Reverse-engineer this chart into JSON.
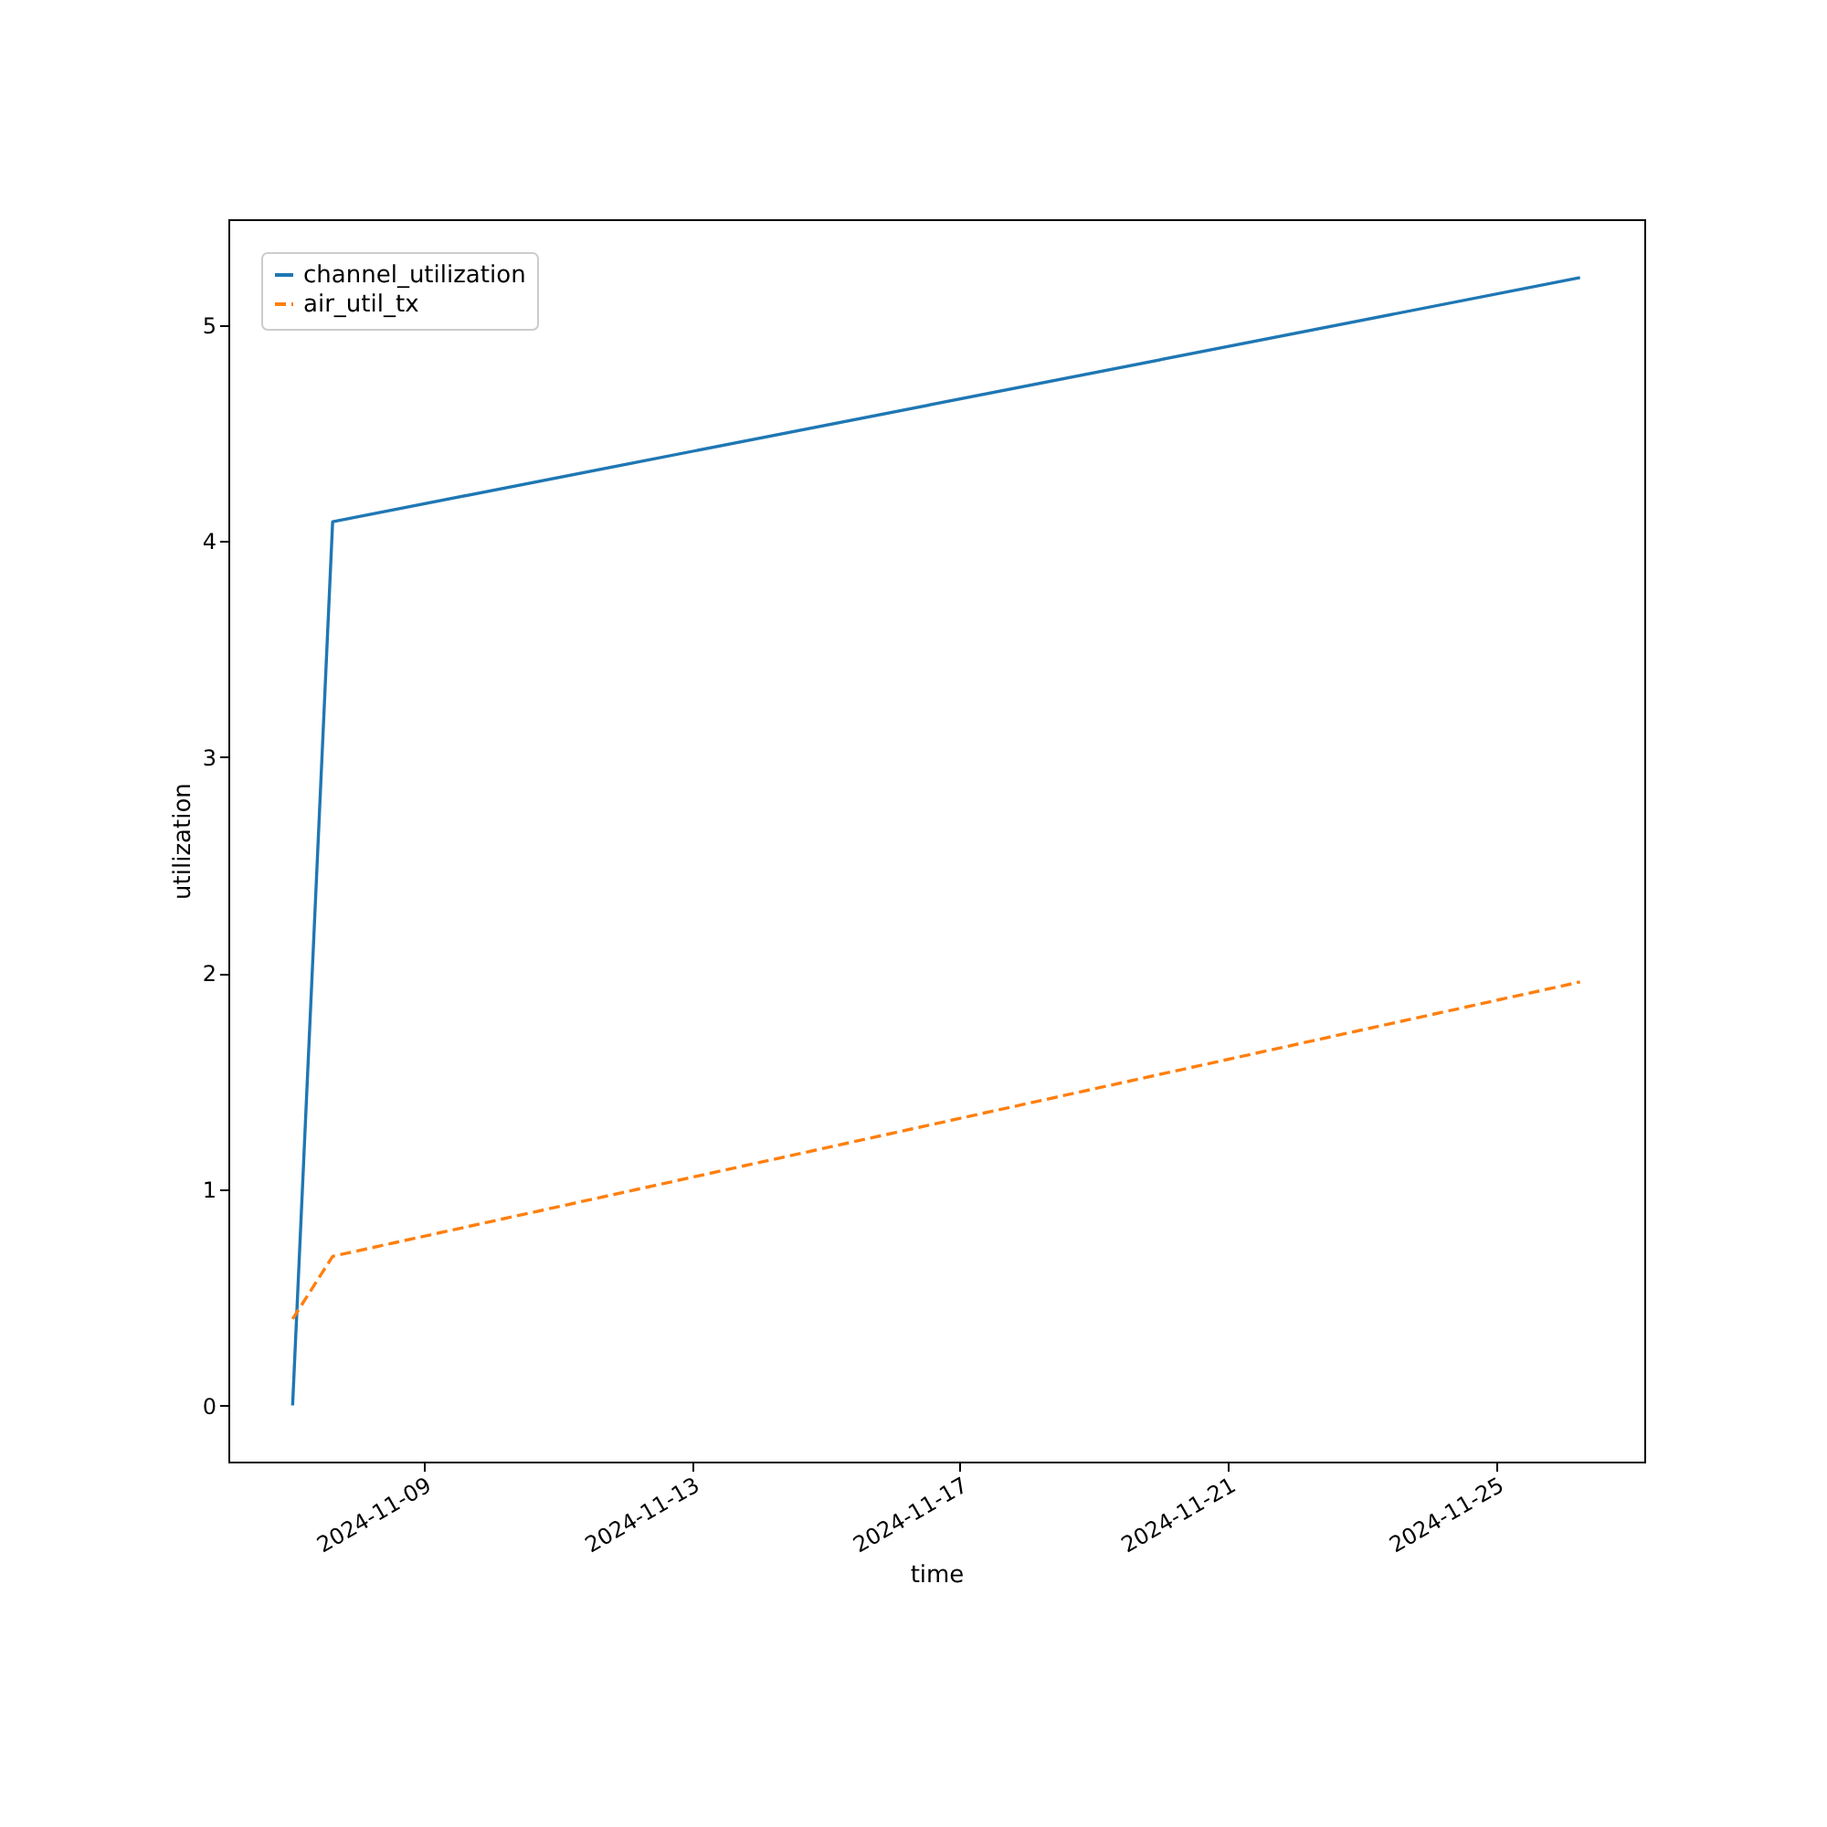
{
  "chart_data": {
    "type": "line",
    "xlabel": "time",
    "ylabel": "utilization",
    "series": [
      {
        "name": "channel_utilization",
        "color": "#1f77b4",
        "line_style": "solid",
        "x": [
          "2024-11-07T01:00",
          "2024-11-07T15:20",
          "2024-11-26T06:00"
        ],
        "values": [
          0,
          4.09,
          5.22
        ]
      },
      {
        "name": "air_util_tx",
        "color": "#ff7f0e",
        "line_style": "dashed",
        "x": [
          "2024-11-07T01:00",
          "2024-11-07T15:20",
          "2024-11-26T06:00"
        ],
        "values": [
          0.4,
          0.69,
          1.96
        ]
      }
    ],
    "xlim": [
      "2024-11-06T02:00",
      "2024-11-27T05:00"
    ],
    "xticks": [
      "2024-11-09",
      "2024-11-13",
      "2024-11-17",
      "2024-11-21",
      "2024-11-25"
    ],
    "ylim": [
      -0.26,
      5.49
    ],
    "yticks": [
      0,
      1,
      2,
      3,
      4,
      5
    ],
    "grid": false,
    "legend": "top left",
    "marker": "none"
  }
}
